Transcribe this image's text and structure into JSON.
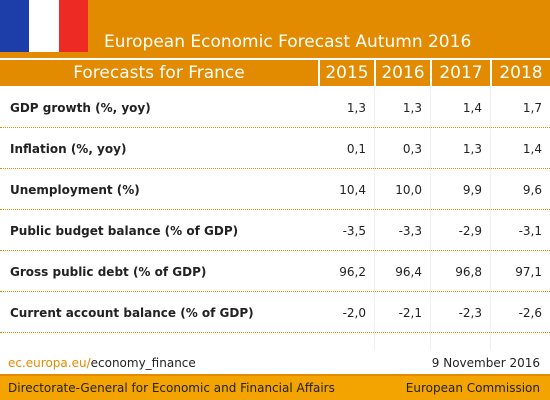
{
  "header": {
    "title": "European Economic Forecast Autumn 2016"
  },
  "table": {
    "columns": [
      "Forecasts for France",
      "2015",
      "2016",
      "2017",
      "2018"
    ],
    "rows": [
      [
        "GDP growth (%, yoy)",
        "1,3",
        "1,3",
        "1,4",
        "1,7"
      ],
      [
        "Inflation (%, yoy)",
        "0,1",
        "0,3",
        "1,3",
        "1,4"
      ],
      [
        "Unemployment (%)",
        "10,4",
        "10,0",
        "9,9",
        "9,6"
      ],
      [
        "Public budget balance (% of GDP)",
        "-3,5",
        "-3,3",
        "-2,9",
        "-3,1"
      ],
      [
        "Gross public debt (% of GDP)",
        "96,2",
        "96,4",
        "96,8",
        "97,1"
      ],
      [
        "Current account balance (% of GDP)",
        "-2,0",
        "-2,1",
        "-2,3",
        "-2,6"
      ]
    ]
  },
  "footer": {
    "link_domain": "ec.europa.eu/",
    "link_path": "economy_finance",
    "date": "9 November 2016",
    "department": "Directorate-General for Economic and Financial Affairs",
    "organisation": "European Commission"
  }
}
